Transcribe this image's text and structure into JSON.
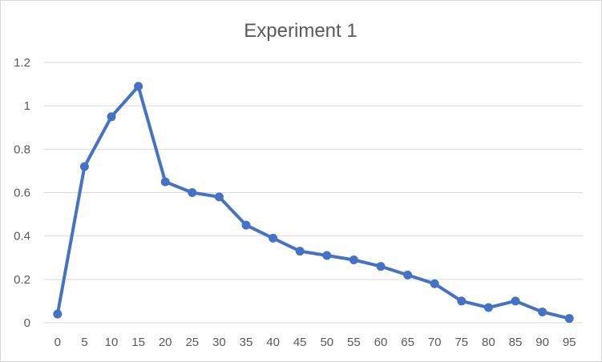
{
  "chart_data": {
    "type": "line",
    "title": "Experiment 1",
    "xlabel": "",
    "ylabel": "",
    "x": [
      0,
      5,
      10,
      15,
      20,
      25,
      30,
      35,
      40,
      45,
      50,
      55,
      60,
      65,
      70,
      75,
      80,
      85,
      90,
      95
    ],
    "series": [
      {
        "values": [
          0.04,
          0.72,
          0.95,
          1.09,
          0.65,
          0.6,
          0.58,
          0.45,
          0.39,
          0.33,
          0.31,
          0.29,
          0.26,
          0.22,
          0.18,
          0.1,
          0.07,
          0.1,
          0.05,
          0.02
        ]
      }
    ],
    "ylim": [
      0,
      1.2
    ],
    "yticks": [
      "0",
      "0.2",
      "0.4",
      "0.6",
      "0.8",
      "1",
      "1.2"
    ],
    "grid": true,
    "legend": "none",
    "colors": {
      "series": "#4472c4",
      "grid": "#d9d9d9",
      "text": "#595959"
    }
  }
}
